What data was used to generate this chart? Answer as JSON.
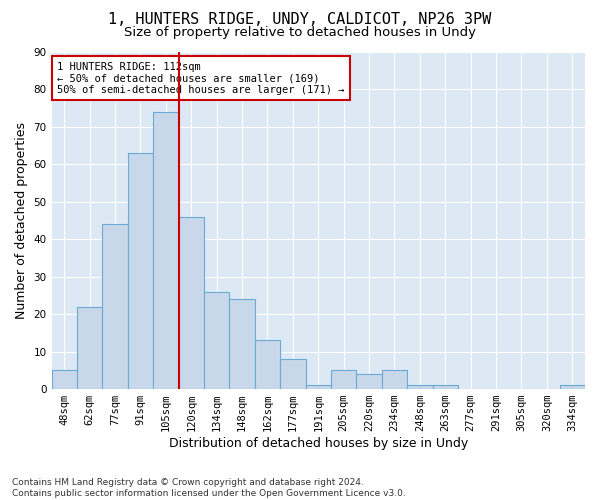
{
  "title": "1, HUNTERS RIDGE, UNDY, CALDICOT, NP26 3PW",
  "subtitle": "Size of property relative to detached houses in Undy",
  "xlabel": "Distribution of detached houses by size in Undy",
  "ylabel": "Number of detached properties",
  "footer_line1": "Contains HM Land Registry data © Crown copyright and database right 2024.",
  "footer_line2": "Contains public sector information licensed under the Open Government Licence v3.0.",
  "bar_labels": [
    "48sqm",
    "62sqm",
    "77sqm",
    "91sqm",
    "105sqm",
    "120sqm",
    "134sqm",
    "148sqm",
    "162sqm",
    "177sqm",
    "191sqm",
    "205sqm",
    "220sqm",
    "234sqm",
    "248sqm",
    "263sqm",
    "277sqm",
    "291sqm",
    "305sqm",
    "320sqm",
    "334sqm"
  ],
  "bar_values": [
    5,
    22,
    44,
    63,
    74,
    46,
    26,
    24,
    13,
    8,
    1,
    5,
    4,
    5,
    1,
    1,
    0,
    0,
    0,
    0,
    1
  ],
  "bar_color": "#c8d8ea",
  "bar_edge_color": "#6aaad4",
  "vline_x": 4.5,
  "vline_color": "#cc0000",
  "annotation_text": "1 HUNTERS RIDGE: 112sqm\n← 50% of detached houses are smaller (169)\n50% of semi-detached houses are larger (171) →",
  "annotation_box_color": "#ffffff",
  "annotation_box_edge_color": "#cc0000",
  "ylim": [
    0,
    90
  ],
  "yticks": [
    0,
    10,
    20,
    30,
    40,
    50,
    60,
    70,
    80,
    90
  ],
  "plot_bg_color": "#dce9f5",
  "fig_bg_color": "#ffffff",
  "title_fontsize": 11,
  "subtitle_fontsize": 9.5,
  "axis_label_fontsize": 9,
  "tick_fontsize": 7.5,
  "footer_fontsize": 6.5,
  "annotation_fontsize": 7.5
}
